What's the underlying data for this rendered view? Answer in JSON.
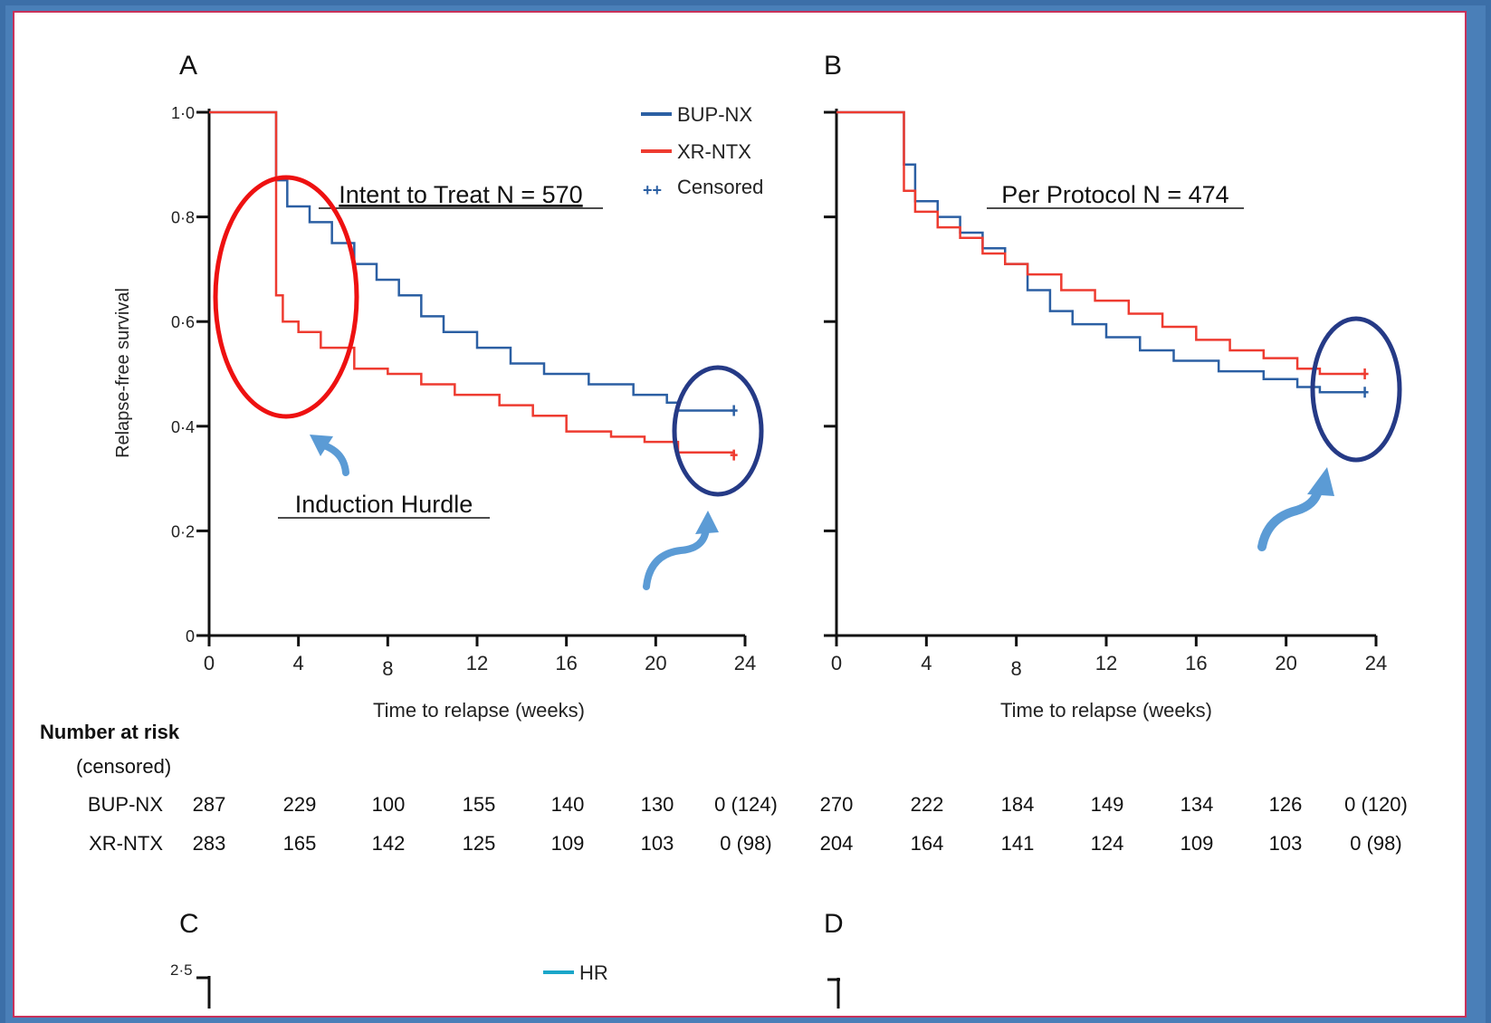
{
  "panels": [
    {
      "letter": "A",
      "title": "Intent to Treat N = 570",
      "annotation": "Induction Hurdle"
    },
    {
      "letter": "B",
      "title": "Per Protocol N = 474",
      "annotation": ""
    },
    {
      "letter": "C"
    },
    {
      "letter": "D"
    }
  ],
  "ylabel": "Relapse-free survival",
  "xlabel": "Time to relapse (weeks)",
  "y_ticks": [
    "0",
    "0·2",
    "0·4",
    "0·6",
    "0·8",
    "1·0"
  ],
  "x_ticks": [
    "0",
    "4",
    "8",
    "12",
    "16",
    "20",
    "24"
  ],
  "legend": {
    "bup": "BUP-NX",
    "xr": "XR-NTX",
    "censored": "Censored",
    "censored_marks": "++",
    "hr": "HR"
  },
  "risk_table": {
    "title_line1": "Number at risk",
    "title_line2": "(censored)",
    "rows": [
      {
        "label": "BUP-NX",
        "A": [
          "287",
          "229",
          "100",
          "155",
          "140",
          "130",
          "0 (124)"
        ],
        "B": [
          "270",
          "222",
          "184",
          "149",
          "134",
          "126",
          "0 (120)"
        ]
      },
      {
        "label": "XR-NTX",
        "A": [
          "283",
          "165",
          "142",
          "125",
          "109",
          "103",
          "0 (98)"
        ],
        "B": [
          "204",
          "164",
          "141",
          "124",
          "109",
          "103",
          "0 (98)"
        ]
      }
    ]
  },
  "panel_c_ytick": "2·5",
  "colors": {
    "bup": "#2b5fa3",
    "xr": "#ee3b30",
    "hr": "#1aa6c9",
    "frame": "#4a7fb8",
    "circle_red": "#ee1111",
    "circle_blue": "#253a86",
    "arrow": "#5b9bd5"
  },
  "chart_data": [
    {
      "type": "line",
      "title": "Intent to Treat N = 570",
      "xlabel": "Time to relapse (weeks)",
      "ylabel": "Relapse-free survival",
      "xlim": [
        0,
        24
      ],
      "ylim": [
        0,
        1
      ],
      "series": [
        {
          "name": "BUP-NX",
          "points": [
            [
              0,
              1.0
            ],
            [
              3,
              1.0
            ],
            [
              3,
              0.87
            ],
            [
              3.5,
              0.82
            ],
            [
              4.5,
              0.79
            ],
            [
              5.5,
              0.75
            ],
            [
              6.5,
              0.71
            ],
            [
              7.5,
              0.68
            ],
            [
              8.5,
              0.65
            ],
            [
              9.5,
              0.61
            ],
            [
              10.5,
              0.58
            ],
            [
              12,
              0.55
            ],
            [
              13.5,
              0.52
            ],
            [
              15,
              0.5
            ],
            [
              17,
              0.48
            ],
            [
              19,
              0.46
            ],
            [
              20.5,
              0.445
            ],
            [
              21,
              0.43
            ],
            [
              23.5,
              0.43
            ]
          ]
        },
        {
          "name": "XR-NTX",
          "points": [
            [
              0,
              1.0
            ],
            [
              3,
              1.0
            ],
            [
              3,
              0.65
            ],
            [
              3.3,
              0.6
            ],
            [
              4,
              0.58
            ],
            [
              5,
              0.55
            ],
            [
              6.5,
              0.51
            ],
            [
              8,
              0.5
            ],
            [
              9.5,
              0.48
            ],
            [
              11,
              0.46
            ],
            [
              13,
              0.44
            ],
            [
              14.5,
              0.42
            ],
            [
              16,
              0.39
            ],
            [
              18,
              0.38
            ],
            [
              19.5,
              0.37
            ],
            [
              21,
              0.35
            ],
            [
              23.5,
              0.345
            ]
          ]
        }
      ]
    },
    {
      "type": "line",
      "title": "Per Protocol N = 474",
      "xlabel": "Time to relapse (weeks)",
      "ylabel": "Relapse-free survival",
      "xlim": [
        0,
        24
      ],
      "ylim": [
        0,
        1
      ],
      "series": [
        {
          "name": "BUP-NX",
          "points": [
            [
              0,
              1.0
            ],
            [
              3,
              1.0
            ],
            [
              3,
              0.9
            ],
            [
              3.5,
              0.83
            ],
            [
              4.5,
              0.8
            ],
            [
              5.5,
              0.77
            ],
            [
              6.5,
              0.74
            ],
            [
              7.5,
              0.71
            ],
            [
              8.5,
              0.66
            ],
            [
              9.5,
              0.62
            ],
            [
              10.5,
              0.595
            ],
            [
              12,
              0.57
            ],
            [
              13.5,
              0.545
            ],
            [
              15,
              0.525
            ],
            [
              17,
              0.505
            ],
            [
              19,
              0.49
            ],
            [
              20.5,
              0.475
            ],
            [
              21.5,
              0.465
            ],
            [
              23.5,
              0.465
            ]
          ]
        },
        {
          "name": "XR-NTX",
          "points": [
            [
              0,
              1.0
            ],
            [
              3,
              1.0
            ],
            [
              3,
              0.85
            ],
            [
              3.5,
              0.81
            ],
            [
              4.5,
              0.78
            ],
            [
              5.5,
              0.76
            ],
            [
              6.5,
              0.73
            ],
            [
              7.5,
              0.71
            ],
            [
              8.5,
              0.69
            ],
            [
              10,
              0.66
            ],
            [
              11.5,
              0.64
            ],
            [
              13,
              0.615
            ],
            [
              14.5,
              0.59
            ],
            [
              16,
              0.565
            ],
            [
              17.5,
              0.545
            ],
            [
              19,
              0.53
            ],
            [
              20.5,
              0.51
            ],
            [
              21.5,
              0.5
            ],
            [
              23.5,
              0.5
            ]
          ]
        }
      ]
    }
  ]
}
